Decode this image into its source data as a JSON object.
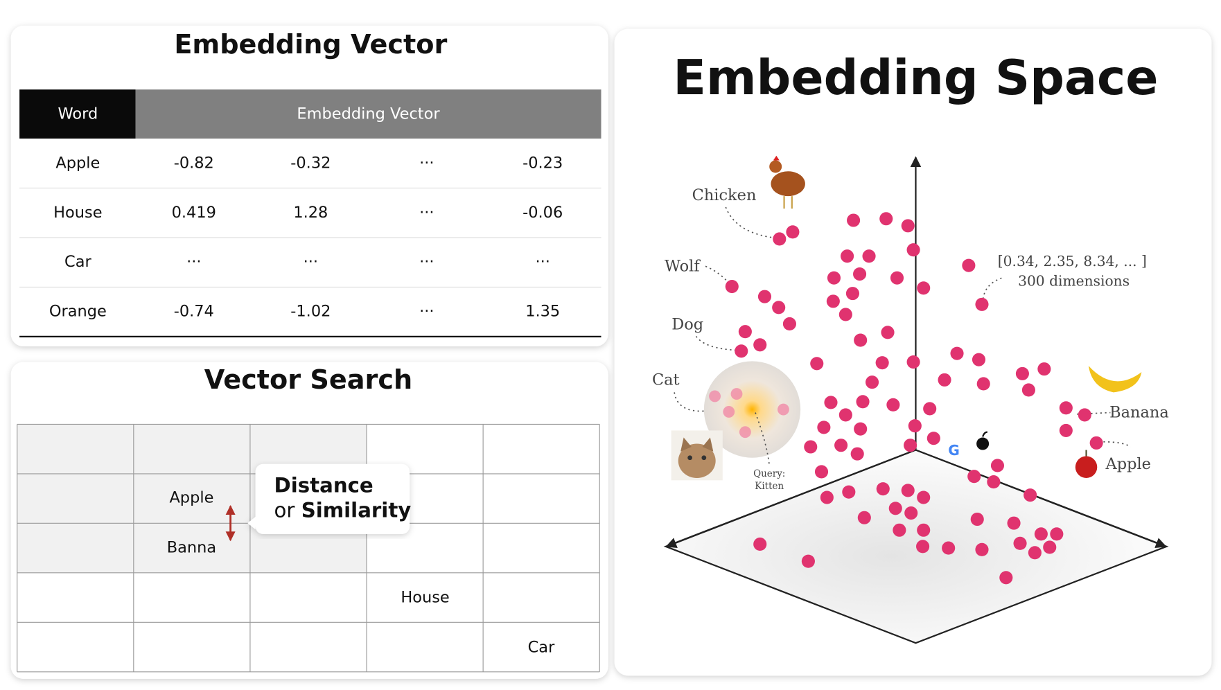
{
  "embedding_table": {
    "title": "Embedding Vector",
    "header": [
      "Word",
      "Embedding Vector"
    ],
    "rows": [
      [
        "Apple",
        -0.82,
        -0.32,
        "···",
        -0.23
      ],
      [
        "House",
        0.419,
        1.28,
        "···",
        -0.06
      ],
      [
        "Car",
        "···",
        "···",
        "···",
        "···"
      ],
      [
        "Orange",
        -0.74,
        -1.02,
        "···",
        1.35
      ]
    ]
  },
  "vector_search": {
    "title": "Vector Search",
    "grid_labels": [
      "Apple",
      "Banna",
      "House",
      "Car"
    ],
    "callout": {
      "line1": "Distance",
      "or": "or",
      "line2": "Similarity"
    }
  },
  "embedding_space": {
    "title": "Embedding Space",
    "labels": [
      "Chicken",
      "Wolf",
      "Dog",
      "Cat",
      "Banana",
      "Apple"
    ],
    "query": [
      "Query:",
      "Kitten"
    ],
    "vector_note": [
      "[0.34, 2.35, 8.34, ... ]",
      "300 dimensions"
    ]
  }
}
